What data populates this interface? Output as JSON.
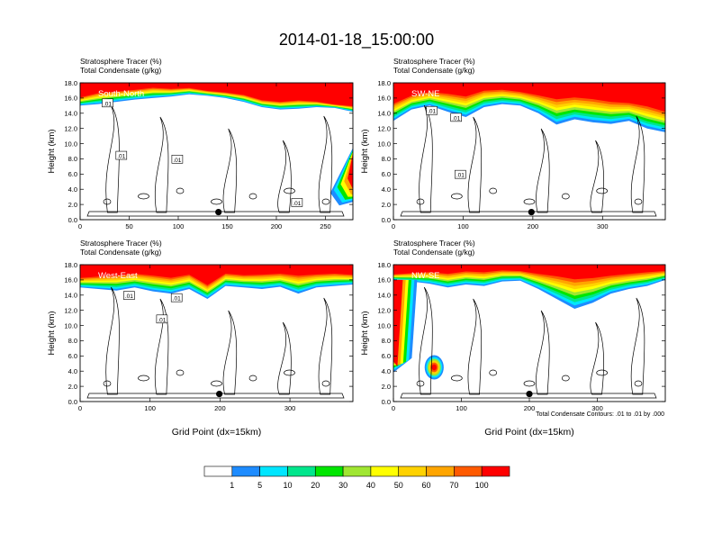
{
  "figure": {
    "title": "2014-01-18_15:00:00",
    "footnote": "Total Condensate Contours: .01 to .01 by .000"
  },
  "colorbar": {
    "colors": [
      "#ffffff",
      "#1e8cff",
      "#00e6ff",
      "#00e68c",
      "#00e600",
      "#a0e632",
      "#ffff00",
      "#ffd200",
      "#ffa500",
      "#ff5a00",
      "#ff0000"
    ],
    "labels": [
      "1",
      "5",
      "10",
      "20",
      "30",
      "40",
      "50",
      "60",
      "70",
      "100"
    ]
  },
  "chart_data": [
    {
      "type": "heatmap",
      "section_label": "South-North",
      "title_lines": [
        "Stratosphere Tracer   (%)",
        "Total Condensate   (g/kg)"
      ],
      "ylabel": "Height (km)",
      "xlabel": "",
      "xlim": [
        0,
        278
      ],
      "ylim": [
        0,
        18
      ],
      "xticks": [
        0,
        50,
        100,
        150,
        200,
        250
      ],
      "yticks": [
        "0.0",
        "2.0",
        "4.0",
        "6.0",
        "8.0",
        "10.0",
        "12.0",
        "14.0",
        "16.0",
        "18.0"
      ],
      "grid": false,
      "contour_labels": [
        {
          "text": ".01",
          "x": 28,
          "y": 15.3
        },
        {
          "text": ".01",
          "x": 42,
          "y": 8.4
        },
        {
          "text": ".01",
          "x": 99,
          "y": 7.9
        },
        {
          "text": ".01",
          "x": 221,
          "y": 2.2
        }
      ],
      "marker": {
        "x": 141,
        "y": 1.0
      },
      "tracer_field": {
        "top_boundary_km": [
          15.0,
          15.2,
          15.5,
          15.8,
          16.0,
          16.2,
          16.5,
          16.3,
          16.0,
          15.5,
          14.8,
          14.5,
          14.6,
          14.8,
          14.7,
          14.2
        ],
        "core_boundary_km": [
          16.2,
          16.8,
          17.0,
          17.2,
          17.5,
          17.3,
          17.4,
          17.0,
          16.8,
          16.5,
          15.8,
          15.6,
          15.8,
          15.6,
          15.2,
          15.0
        ],
        "intrusion": {
          "x_start": 255,
          "x_end": 278,
          "y_low_km": 4.0,
          "y_high_km": 8.5
        }
      }
    },
    {
      "type": "heatmap",
      "section_label": "SW-NE",
      "title_lines": [
        "Stratosphere Tracer   (%)",
        "Total Condensate   (g/kg)"
      ],
      "ylabel": "Height (km)",
      "xlabel": "",
      "xlim": [
        0,
        390
      ],
      "ylim": [
        0,
        18
      ],
      "xticks": [
        0,
        100,
        200,
        300
      ],
      "yticks": [
        "0.0",
        "2.0",
        "4.0",
        "6.0",
        "8.0",
        "10.0",
        "12.0",
        "14.0",
        "16.0",
        "18.0"
      ],
      "grid": false,
      "contour_labels": [
        {
          "text": ".01",
          "x": 55,
          "y": 14.3
        },
        {
          "text": ".01",
          "x": 90,
          "y": 13.4
        },
        {
          "text": ".01",
          "x": 96,
          "y": 5.9
        }
      ],
      "marker": {
        "x": 198,
        "y": 1.0
      },
      "tracer_field": {
        "top_boundary_km": [
          13.0,
          14.5,
          15.0,
          14.2,
          13.5,
          14.8,
          15.2,
          15.0,
          14.0,
          12.5,
          13.2,
          12.8,
          12.6,
          13.0,
          12.0,
          11.5
        ],
        "core_boundary_km": [
          15.5,
          16.5,
          17.0,
          16.8,
          16.5,
          17.2,
          17.3,
          17.0,
          16.6,
          16.2,
          16.4,
          16.2,
          15.8,
          15.6,
          15.2,
          14.5
        ],
        "intrusion": null
      }
    },
    {
      "type": "heatmap",
      "section_label": "West-East",
      "title_lines": [
        "Stratosphere Tracer   (%)",
        "Total Condensate   (g/kg)"
      ],
      "ylabel": "Height (km)",
      "xlabel": "Grid Point (dx=15km)",
      "xlim": [
        0,
        390
      ],
      "ylim": [
        0,
        18
      ],
      "xticks": [
        0,
        100,
        200,
        300
      ],
      "yticks": [
        "0.0",
        "2.0",
        "4.0",
        "6.0",
        "8.0",
        "10.0",
        "12.0",
        "14.0",
        "16.0",
        "18.0"
      ],
      "grid": false,
      "contour_labels": [
        {
          "text": ".01",
          "x": 70,
          "y": 13.9
        },
        {
          "text": ".01",
          "x": 138,
          "y": 13.6
        },
        {
          "text": ".01",
          "x": 117,
          "y": 10.8
        }
      ],
      "marker": {
        "x": 199,
        "y": 1.0
      },
      "tracer_field": {
        "top_boundary_km": [
          15.0,
          14.8,
          14.6,
          15.0,
          14.5,
          14.2,
          14.8,
          13.5,
          15.2,
          15.0,
          14.8,
          15.1,
          14.2,
          15.0,
          15.2,
          15.4
        ],
        "core_boundary_km": [
          16.4,
          16.6,
          16.8,
          17.0,
          16.8,
          16.5,
          16.9,
          15.5,
          17.0,
          16.8,
          16.9,
          17.0,
          16.8,
          16.9,
          17.0,
          16.8
        ],
        "intrusion": null
      }
    },
    {
      "type": "heatmap",
      "section_label": "NW-SE",
      "title_lines": [
        "Stratosphere Tracer   (%)",
        "Total Condensate   (g/kg)"
      ],
      "ylabel": "Height (km)",
      "xlabel": "Grid Point (dx=15km)",
      "xlim": [
        0,
        400
      ],
      "ylim": [
        0,
        18
      ],
      "xticks": [
        0,
        100,
        200,
        300
      ],
      "yticks": [
        "0.0",
        "2.0",
        "4.0",
        "6.0",
        "8.0",
        "10.0",
        "12.0",
        "14.0",
        "16.0",
        "18.0"
      ],
      "grid": false,
      "contour_labels": [],
      "marker": {
        "x": 200,
        "y": 1.0
      },
      "tracer_field": {
        "top_boundary_km": [
          16.0,
          15.8,
          15.5,
          15.0,
          15.4,
          15.2,
          15.8,
          15.9,
          14.8,
          13.5,
          12.2,
          13.0,
          14.2,
          14.8,
          15.2,
          16.0
        ],
        "core_boundary_km": [
          16.8,
          17.0,
          17.2,
          17.0,
          17.3,
          17.2,
          17.4,
          17.3,
          17.0,
          16.8,
          16.5,
          16.6,
          16.8,
          17.0,
          17.2,
          17.3
        ],
        "intrusion": {
          "x_start": 0,
          "x_end": 35,
          "y_low_km": 5.0,
          "y_high_km": 16.0
        },
        "blob": {
          "x": 60,
          "y": 4.5,
          "rx": 14,
          "ry": 1.6
        }
      }
    }
  ]
}
